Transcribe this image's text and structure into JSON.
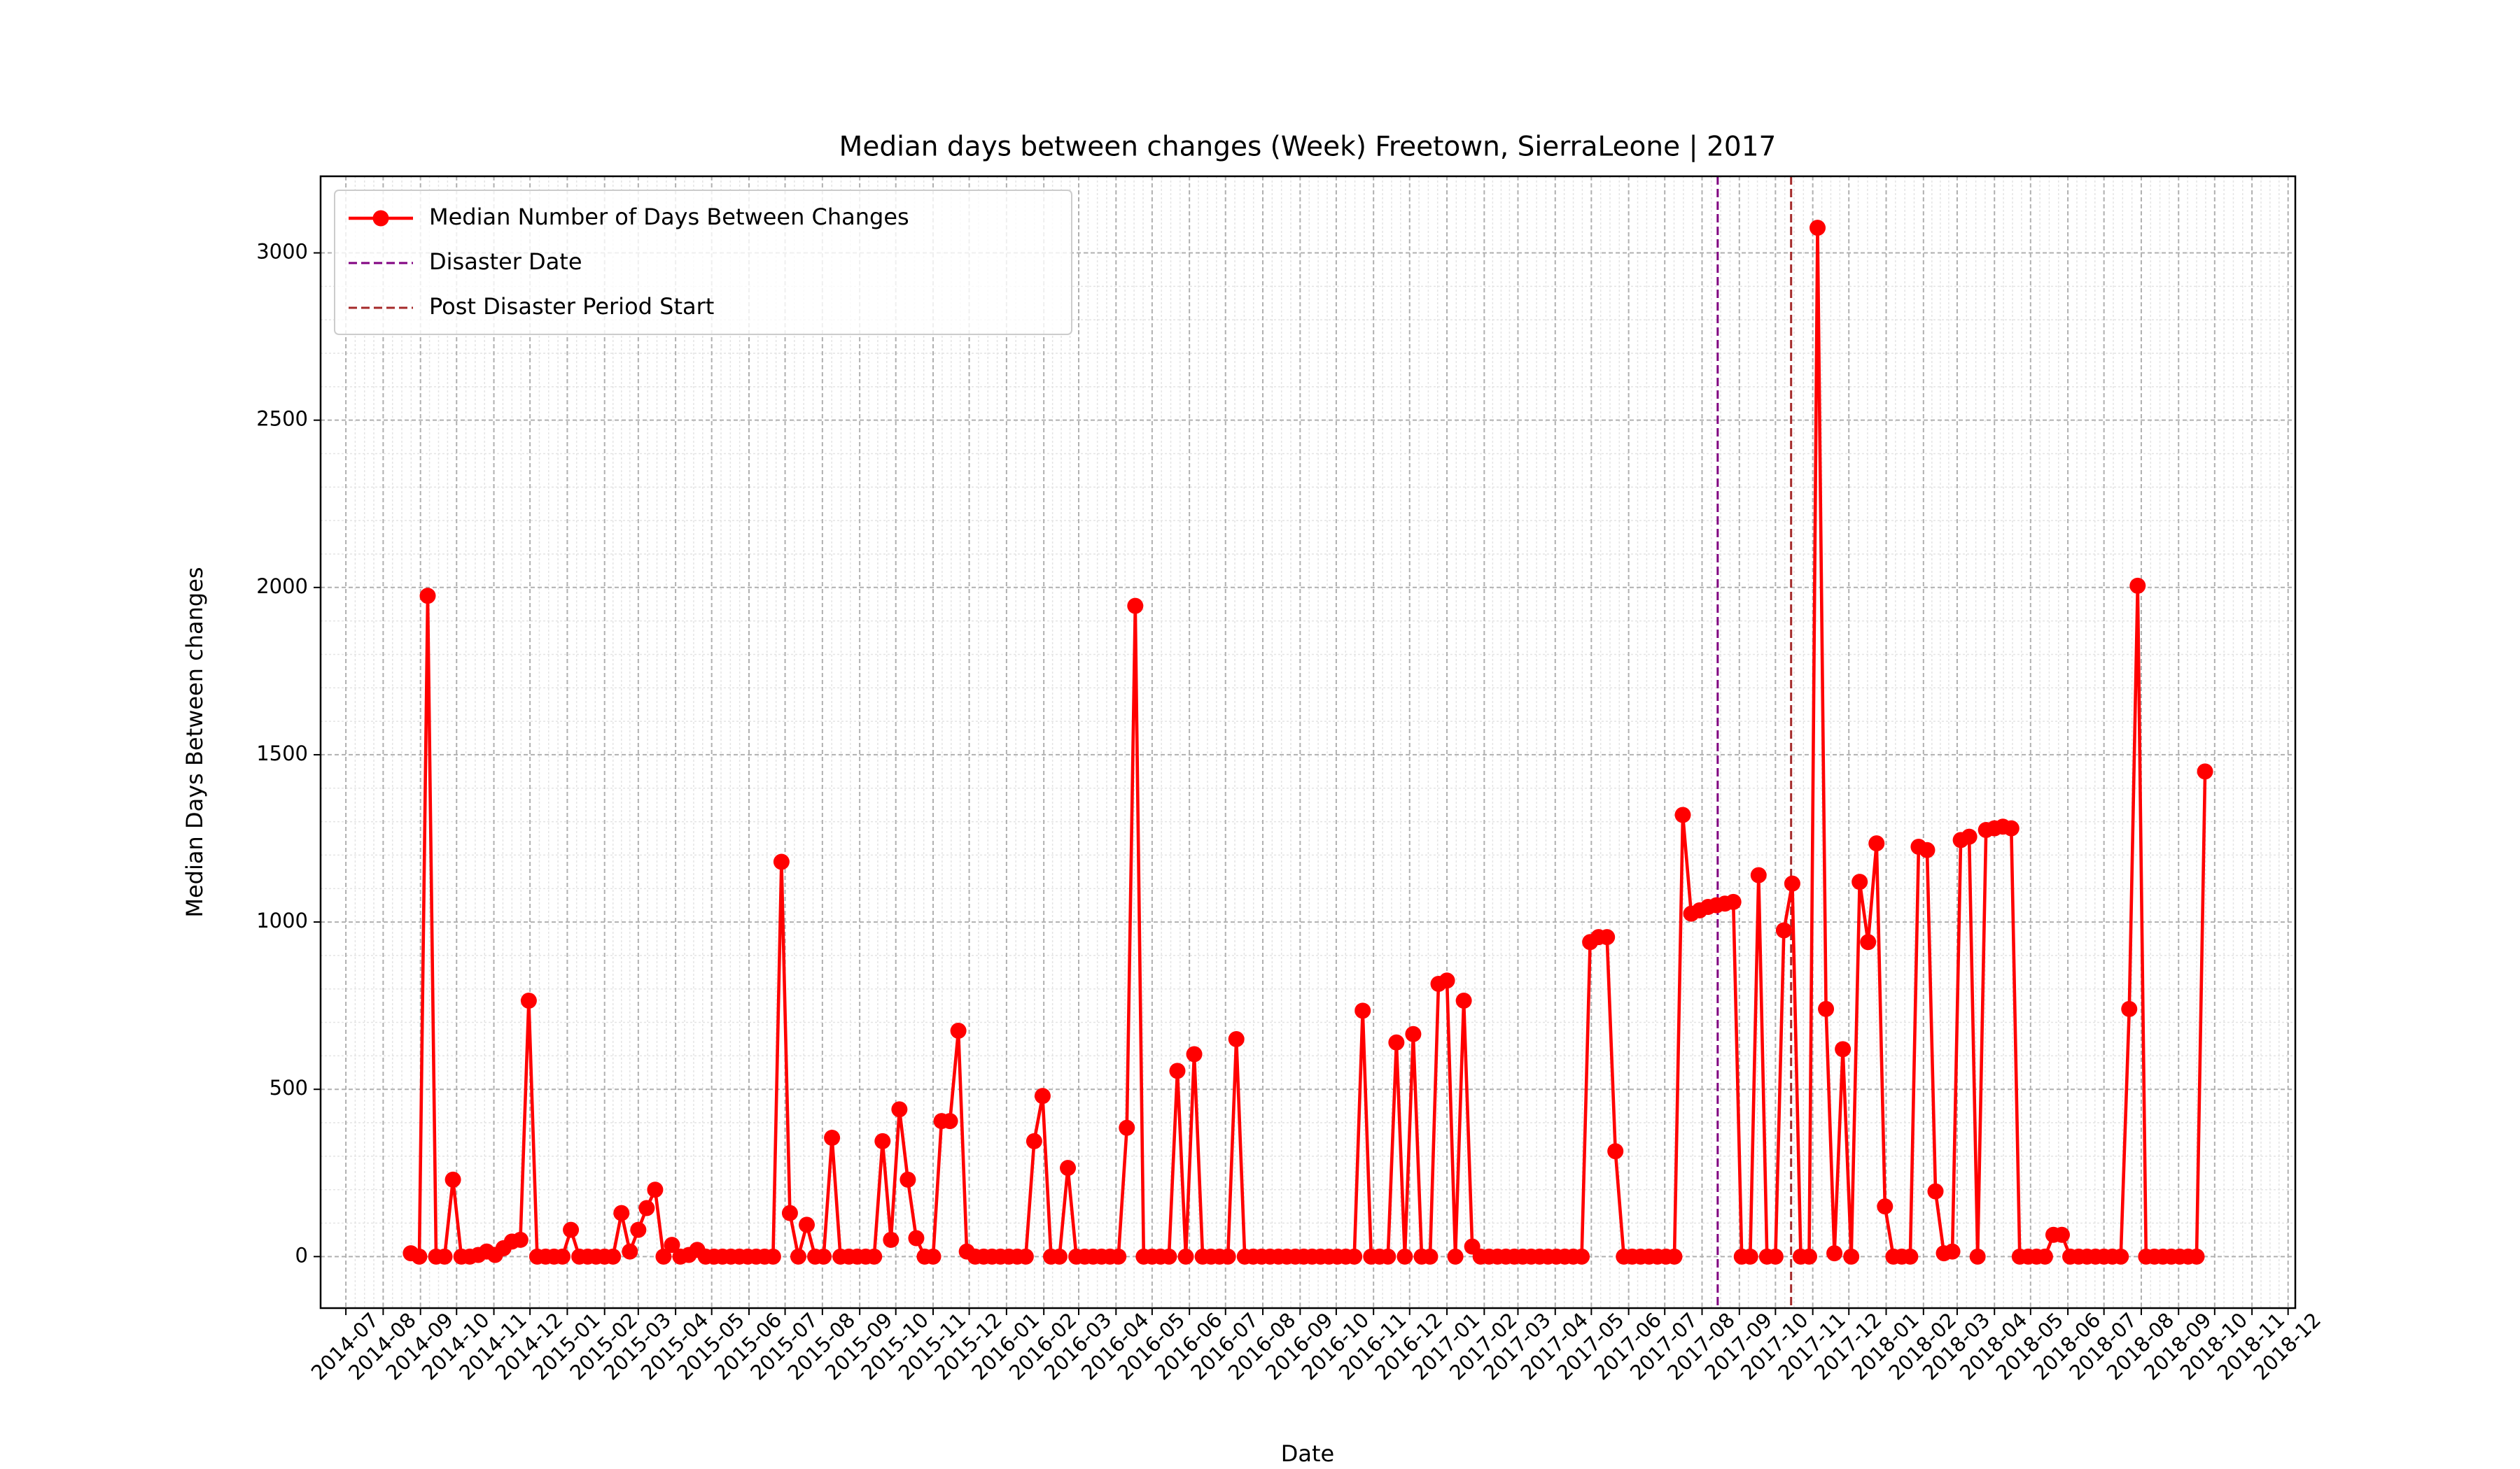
{
  "chart_data": {
    "type": "line",
    "title": "Median days between changes (Week) Freetown, SierraLeone | 2017",
    "xlabel": "Date",
    "ylabel": "Median Days Between changes",
    "x": [
      "2014-08-24",
      "2014-08-31",
      "2014-09-07",
      "2014-09-14",
      "2014-09-21",
      "2014-09-28",
      "2014-10-05",
      "2014-10-12",
      "2014-10-19",
      "2014-10-26",
      "2014-11-02",
      "2014-11-09",
      "2014-11-16",
      "2014-11-23",
      "2014-11-30",
      "2014-12-07",
      "2014-12-14",
      "2014-12-21",
      "2014-12-28",
      "2015-01-04",
      "2015-01-11",
      "2015-01-18",
      "2015-01-25",
      "2015-02-01",
      "2015-02-08",
      "2015-02-15",
      "2015-02-22",
      "2015-03-01",
      "2015-03-08",
      "2015-03-15",
      "2015-03-22",
      "2015-03-29",
      "2015-04-05",
      "2015-04-12",
      "2015-04-19",
      "2015-04-26",
      "2015-05-03",
      "2015-05-10",
      "2015-05-17",
      "2015-05-24",
      "2015-05-31",
      "2015-06-07",
      "2015-06-14",
      "2015-06-21",
      "2015-06-28",
      "2015-07-05",
      "2015-07-12",
      "2015-07-19",
      "2015-07-26",
      "2015-08-02",
      "2015-08-09",
      "2015-08-16",
      "2015-08-23",
      "2015-08-30",
      "2015-09-06",
      "2015-09-13",
      "2015-09-20",
      "2015-09-27",
      "2015-10-04",
      "2015-10-11",
      "2015-10-18",
      "2015-10-25",
      "2015-11-01",
      "2015-11-08",
      "2015-11-15",
      "2015-11-22",
      "2015-11-29",
      "2015-12-06",
      "2015-12-13",
      "2015-12-20",
      "2015-12-27",
      "2016-01-03",
      "2016-01-10",
      "2016-01-17",
      "2016-01-24",
      "2016-01-31",
      "2016-02-07",
      "2016-02-14",
      "2016-02-21",
      "2016-02-28",
      "2016-03-06",
      "2016-03-13",
      "2016-03-20",
      "2016-03-27",
      "2016-04-03",
      "2016-04-10",
      "2016-04-17",
      "2016-04-24",
      "2016-05-01",
      "2016-05-08",
      "2016-05-15",
      "2016-05-22",
      "2016-05-29",
      "2016-06-05",
      "2016-06-12",
      "2016-06-19",
      "2016-06-26",
      "2016-07-03",
      "2016-07-10",
      "2016-07-17",
      "2016-07-24",
      "2016-07-31",
      "2016-08-07",
      "2016-08-14",
      "2016-08-21",
      "2016-08-28",
      "2016-09-04",
      "2016-09-11",
      "2016-09-18",
      "2016-09-25",
      "2016-10-02",
      "2016-10-09",
      "2016-10-16",
      "2016-10-23",
      "2016-10-30",
      "2016-11-06",
      "2016-11-13",
      "2016-11-20",
      "2016-11-27",
      "2016-12-04",
      "2016-12-11",
      "2016-12-18",
      "2016-12-25",
      "2017-01-01",
      "2017-01-08",
      "2017-01-15",
      "2017-01-22",
      "2017-01-29",
      "2017-02-05",
      "2017-02-12",
      "2017-02-19",
      "2017-02-26",
      "2017-03-05",
      "2017-03-12",
      "2017-03-19",
      "2017-03-26",
      "2017-04-02",
      "2017-04-09",
      "2017-04-16",
      "2017-04-23",
      "2017-04-30",
      "2017-05-07",
      "2017-05-14",
      "2017-05-21",
      "2017-05-28",
      "2017-06-04",
      "2017-06-11",
      "2017-06-18",
      "2017-06-25",
      "2017-07-02",
      "2017-07-09",
      "2017-07-16",
      "2017-07-23",
      "2017-07-30",
      "2017-08-06",
      "2017-08-13",
      "2017-08-20",
      "2017-08-27",
      "2017-09-03",
      "2017-09-10",
      "2017-09-17",
      "2017-09-24",
      "2017-10-01",
      "2017-10-08",
      "2017-10-15",
      "2017-10-22",
      "2017-10-29",
      "2017-11-05",
      "2017-11-12",
      "2017-11-19",
      "2017-11-26",
      "2017-12-03",
      "2017-12-10",
      "2017-12-17",
      "2017-12-24",
      "2017-12-31",
      "2018-01-07",
      "2018-01-14",
      "2018-01-21",
      "2018-01-28",
      "2018-02-04",
      "2018-02-11",
      "2018-02-18",
      "2018-02-25",
      "2018-03-04",
      "2018-03-11",
      "2018-03-18",
      "2018-03-25",
      "2018-04-01",
      "2018-04-08",
      "2018-04-15",
      "2018-04-22",
      "2018-04-29",
      "2018-05-06",
      "2018-05-13",
      "2018-05-20",
      "2018-05-27",
      "2018-06-03",
      "2018-06-10",
      "2018-06-17",
      "2018-06-24",
      "2018-07-01",
      "2018-07-08",
      "2018-07-15",
      "2018-07-22",
      "2018-07-29",
      "2018-08-05",
      "2018-08-12",
      "2018-08-19",
      "2018-08-26",
      "2018-09-02",
      "2018-09-09",
      "2018-09-16",
      "2018-09-23"
    ],
    "series": [
      {
        "name": "Median Number of Days Between Changes",
        "color": "#ff0000",
        "values": [
          10,
          0,
          1975,
          0,
          0,
          230,
          0,
          0,
          5,
          15,
          5,
          25,
          45,
          50,
          765,
          0,
          0,
          0,
          0,
          80,
          0,
          0,
          0,
          0,
          0,
          130,
          15,
          80,
          145,
          200,
          0,
          35,
          0,
          5,
          20,
          0,
          0,
          0,
          0,
          0,
          0,
          0,
          0,
          0,
          1180,
          130,
          0,
          95,
          0,
          0,
          355,
          0,
          0,
          0,
          0,
          0,
          345,
          50,
          440,
          230,
          55,
          0,
          0,
          405,
          405,
          675,
          15,
          0,
          0,
          0,
          0,
          0,
          0,
          0,
          345,
          480,
          0,
          0,
          265,
          0,
          0,
          0,
          0,
          0,
          0,
          385,
          1945,
          0,
          0,
          0,
          0,
          555,
          0,
          605,
          0,
          0,
          0,
          0,
          650,
          0,
          0,
          0,
          0,
          0,
          0,
          0,
          0,
          0,
          0,
          0,
          0,
          0,
          0,
          735,
          0,
          0,
          0,
          640,
          0,
          665,
          0,
          0,
          815,
          825,
          0,
          765,
          30,
          0,
          0,
          0,
          0,
          0,
          0,
          0,
          0,
          0,
          0,
          0,
          0,
          0,
          940,
          955,
          955,
          315,
          0,
          0,
          0,
          0,
          0,
          0,
          0,
          1320,
          1025,
          1035,
          1045,
          1050,
          1055,
          1060,
          0,
          0,
          1140,
          0,
          0,
          975,
          1115,
          0,
          0,
          3075,
          740,
          10,
          620,
          0,
          1120,
          940,
          1235,
          150,
          0,
          0,
          0,
          1225,
          1215,
          195,
          10,
          15,
          1245,
          1255,
          0,
          1275,
          1280,
          1285,
          1280,
          0,
          0,
          0,
          0,
          65,
          65,
          0,
          0,
          0,
          0,
          0,
          0,
          0,
          740,
          2005,
          0,
          0,
          0,
          0,
          0,
          0,
          0,
          1450
        ]
      }
    ],
    "vlines": [
      {
        "name": "Disaster Date",
        "color": "#800080",
        "x": "2017-08-14"
      },
      {
        "name": "Post Disaster Period Start",
        "color": "#a52a2a",
        "x": "2017-10-14"
      }
    ],
    "xlim": [
      "2014-06-10",
      "2018-12-07"
    ],
    "xticks": [
      "2014-07",
      "2014-08",
      "2014-09",
      "2014-10",
      "2014-11",
      "2014-12",
      "2015-01",
      "2015-02",
      "2015-03",
      "2015-04",
      "2015-05",
      "2015-06",
      "2015-07",
      "2015-08",
      "2015-09",
      "2015-10",
      "2015-11",
      "2015-12",
      "2016-01",
      "2016-02",
      "2016-03",
      "2016-04",
      "2016-05",
      "2016-06",
      "2016-07",
      "2016-08",
      "2016-09",
      "2016-10",
      "2016-11",
      "2016-12",
      "2017-01",
      "2017-02",
      "2017-03",
      "2017-04",
      "2017-05",
      "2017-06",
      "2017-07",
      "2017-08",
      "2017-09",
      "2017-10",
      "2017-11",
      "2017-12",
      "2018-01",
      "2018-02",
      "2018-03",
      "2018-04",
      "2018-05",
      "2018-06",
      "2018-07",
      "2018-08",
      "2018-09",
      "2018-10",
      "2018-11",
      "2018-12"
    ],
    "ylim": [
      -154,
      3229
    ],
    "yticks": [
      0,
      500,
      1000,
      1500,
      2000,
      2500,
      3000
    ],
    "grid": true,
    "minor_grid": true,
    "legend": "upper left"
  }
}
